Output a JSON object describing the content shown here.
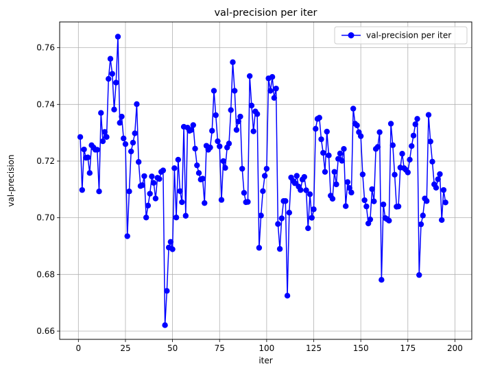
{
  "chart_data": {
    "type": "line",
    "title": "val-precision per iter",
    "xlabel": "iter",
    "ylabel": "val-precision",
    "xlim": [
      -9.95,
      208.95
    ],
    "ylim": [
      0.6571,
      0.7691
    ],
    "xticks": [
      0,
      25,
      50,
      75,
      100,
      125,
      150,
      175,
      200
    ],
    "yticks": [
      0.66,
      0.68,
      0.7,
      0.72,
      0.74,
      0.76
    ],
    "ytick_labels": [
      "0.66",
      "0.68",
      "0.70",
      "0.72",
      "0.74",
      "0.76"
    ],
    "grid": true,
    "legend_position": "top-right",
    "series": [
      {
        "name": "val-precision per iter",
        "color": "#0000ff",
        "marker": "circle",
        "x": [
          1,
          2,
          3,
          4,
          5,
          6,
          7,
          8,
          9,
          10,
          11,
          12,
          13,
          14,
          15,
          16,
          17,
          18,
          19,
          20,
          21,
          22,
          23,
          24,
          25,
          26,
          27,
          28,
          29,
          30,
          31,
          32,
          33,
          34,
          35,
          36,
          37,
          38,
          39,
          40,
          41,
          42,
          43,
          44,
          45,
          46,
          47,
          48,
          49,
          50,
          51,
          52,
          53,
          54,
          55,
          56,
          57,
          58,
          59,
          60,
          61,
          62,
          63,
          64,
          65,
          66,
          67,
          68,
          69,
          70,
          71,
          72,
          73,
          74,
          75,
          76,
          77,
          78,
          79,
          80,
          81,
          82,
          83,
          84,
          85,
          86,
          87,
          88,
          89,
          90,
          91,
          92,
          93,
          94,
          95,
          96,
          97,
          98,
          99,
          100,
          101,
          102,
          103,
          104,
          105,
          106,
          107,
          108,
          109,
          110,
          111,
          112,
          113,
          114,
          115,
          116,
          117,
          118,
          119,
          120,
          121,
          122,
          123,
          124,
          125,
          126,
          127,
          128,
          129,
          130,
          131,
          132,
          133,
          134,
          135,
          136,
          137,
          138,
          139,
          140,
          141,
          142,
          143,
          144,
          145,
          146,
          147,
          148,
          149,
          150,
          151,
          152,
          153,
          154,
          155,
          156,
          157,
          158,
          159,
          160,
          161,
          162,
          163,
          164,
          165,
          166,
          167,
          168,
          169,
          170,
          171,
          172,
          173,
          174,
          175,
          176,
          177,
          178,
          179,
          180,
          181,
          182,
          183,
          184,
          185,
          186,
          187,
          188,
          189,
          190,
          191,
          192,
          193,
          194,
          195
        ],
        "y": [
          0.7285,
          0.7098,
          0.7241,
          0.7212,
          0.7213,
          0.7158,
          0.7256,
          0.7248,
          0.724,
          0.724,
          0.7093,
          0.737,
          0.727,
          0.7303,
          0.7285,
          0.749,
          0.7561,
          0.7508,
          0.7382,
          0.7477,
          0.7639,
          0.7335,
          0.7357,
          0.728,
          0.726,
          0.6935,
          0.7093,
          0.7234,
          0.7265,
          0.7298,
          0.7401,
          0.7197,
          0.7112,
          0.7115,
          0.7147,
          0.7001,
          0.7043,
          0.7085,
          0.7146,
          0.7123,
          0.7068,
          0.7141,
          0.7137,
          0.7162,
          0.7167,
          0.6621,
          0.6742,
          0.6895,
          0.6915,
          0.6889,
          0.7175,
          0.7001,
          0.7205,
          0.7094,
          0.7055,
          0.7321,
          0.7007,
          0.7318,
          0.7307,
          0.731,
          0.7327,
          0.7244,
          0.7185,
          0.7158,
          0.7135,
          0.7138,
          0.7052,
          0.7254,
          0.724,
          0.7248,
          0.7307,
          0.7448,
          0.7362,
          0.727,
          0.7252,
          0.7063,
          0.72,
          0.7176,
          0.7248,
          0.7262,
          0.738,
          0.7549,
          0.7448,
          0.731,
          0.734,
          0.7357,
          0.7173,
          0.7088,
          0.7055,
          0.7056,
          0.75,
          0.7396,
          0.7305,
          0.7375,
          0.7366,
          0.6894,
          0.7008,
          0.7094,
          0.7148,
          0.7173,
          0.7492,
          0.7448,
          0.7497,
          0.7423,
          0.7456,
          0.6978,
          0.689,
          0.6998,
          0.7059,
          0.7059,
          0.6725,
          0.7018,
          0.7142,
          0.713,
          0.7122,
          0.7148,
          0.711,
          0.7098,
          0.7135,
          0.7144,
          0.7097,
          0.6963,
          0.7083,
          0.7,
          0.703,
          0.7314,
          0.7349,
          0.7353,
          0.7277,
          0.7229,
          0.7162,
          0.7304,
          0.722,
          0.7078,
          0.7067,
          0.7162,
          0.7118,
          0.7208,
          0.7227,
          0.7201,
          0.7243,
          0.7041,
          0.7126,
          0.7105,
          0.7089,
          0.7385,
          0.7332,
          0.7326,
          0.7302,
          0.7288,
          0.7153,
          0.7062,
          0.704,
          0.698,
          0.6994,
          0.7101,
          0.7058,
          0.7243,
          0.725,
          0.7302,
          0.6781,
          0.7047,
          0.6999,
          0.6995,
          0.699,
          0.7332,
          0.7256,
          0.7152,
          0.7039,
          0.704,
          0.7177,
          0.7226,
          0.7175,
          0.7169,
          0.716,
          0.7205,
          0.7253,
          0.729,
          0.733,
          0.7349,
          0.6798,
          0.6977,
          0.7008,
          0.7068,
          0.7059,
          0.7363,
          0.7269,
          0.7198,
          0.7118,
          0.7106,
          0.7136,
          0.7154,
          0.6992,
          0.7098,
          0.7054
        ]
      }
    ]
  }
}
